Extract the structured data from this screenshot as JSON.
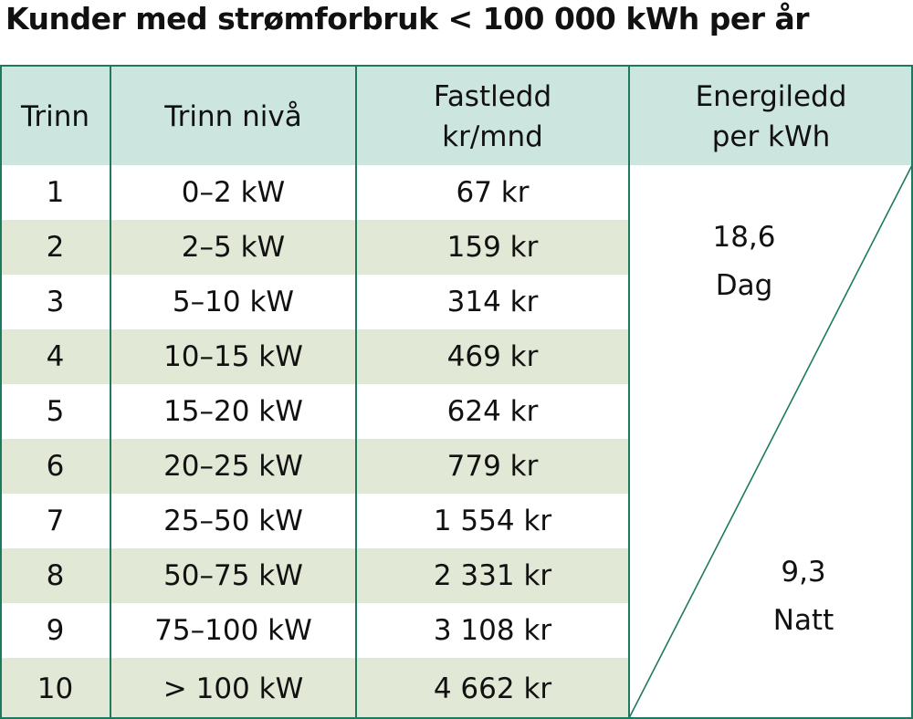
{
  "title": "Kunder med strømforbruk < 100 000 kWh per år",
  "headers": {
    "trinn": "Trinn",
    "niva": "Trinn nivå",
    "fastledd_1": "Fastledd",
    "fastledd_2": "kr/mnd",
    "energi_1": "Energiledd",
    "energi_2": "per kWh"
  },
  "rows": [
    {
      "trinn": "1",
      "niva": "0–2 kW",
      "fastledd": "67 kr"
    },
    {
      "trinn": "2",
      "niva": "2–5 kW",
      "fastledd": "159 kr"
    },
    {
      "trinn": "3",
      "niva": "5–10 kW",
      "fastledd": "314 kr"
    },
    {
      "trinn": "4",
      "niva": "10–15 kW",
      "fastledd": "469 kr"
    },
    {
      "trinn": "5",
      "niva": "15–20 kW",
      "fastledd": "624 kr"
    },
    {
      "trinn": "6",
      "niva": "20–25 kW",
      "fastledd": "779 kr"
    },
    {
      "trinn": "7",
      "niva": "25–50 kW",
      "fastledd": "1 554 kr"
    },
    {
      "trinn": "8",
      "niva": "50–75 kW",
      "fastledd": "2 331 kr"
    },
    {
      "trinn": "9",
      "niva": "75–100 kW",
      "fastledd": "3 108 kr"
    },
    {
      "trinn": "10",
      "niva": "> 100 kW",
      "fastledd": "4 662 kr"
    }
  ],
  "energiledd": {
    "dag_value": "18,6",
    "dag_label": "Dag",
    "natt_value": "9,3",
    "natt_label": "Natt"
  },
  "colors": {
    "header_bg": "#cce5de",
    "row_shade": "#e1e8d5",
    "border": "#1e7a5f"
  }
}
